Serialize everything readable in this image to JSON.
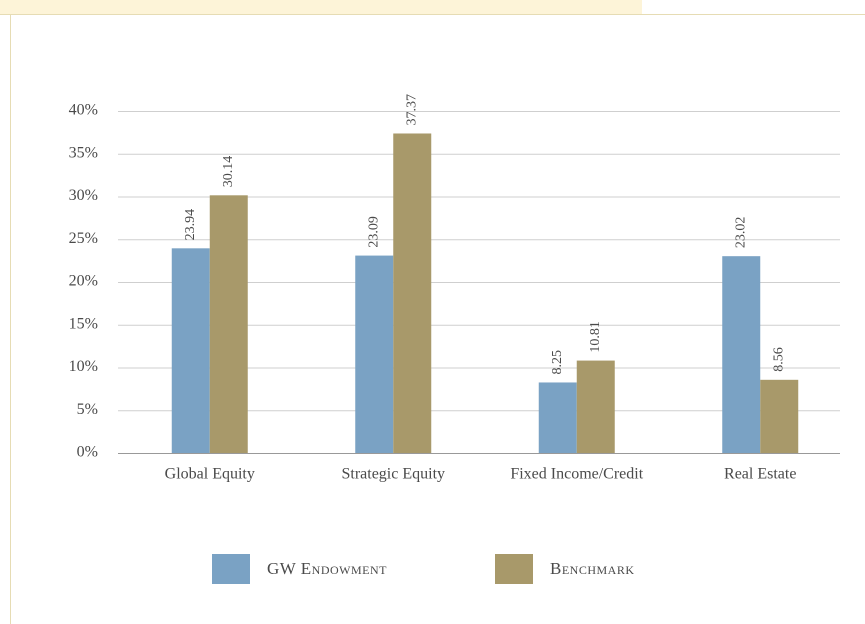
{
  "chart_data": {
    "type": "bar",
    "categories": [
      "Global Equity",
      "Strategic Equity",
      "Fixed Income/Credit",
      "Real Estate"
    ],
    "series": [
      {
        "name": "GW Endowment",
        "color": "#7aa2c4",
        "values": [
          23.94,
          23.09,
          8.25,
          23.02
        ]
      },
      {
        "name": "Benchmark",
        "color": "#a8996a",
        "values": [
          30.14,
          37.37,
          10.81,
          8.56
        ]
      }
    ],
    "ylim": [
      0,
      40
    ],
    "yticks": [
      {
        "value": 0,
        "label": "0%"
      },
      {
        "value": 5,
        "label": "5%"
      },
      {
        "value": 10,
        "label": "10%"
      },
      {
        "value": 15,
        "label": "15%"
      },
      {
        "value": 20,
        "label": "20%"
      },
      {
        "value": 25,
        "label": "25%"
      },
      {
        "value": 30,
        "label": "30%"
      },
      {
        "value": 35,
        "label": "35%"
      },
      {
        "value": 40,
        "label": "40%"
      }
    ],
    "grid": true
  }
}
